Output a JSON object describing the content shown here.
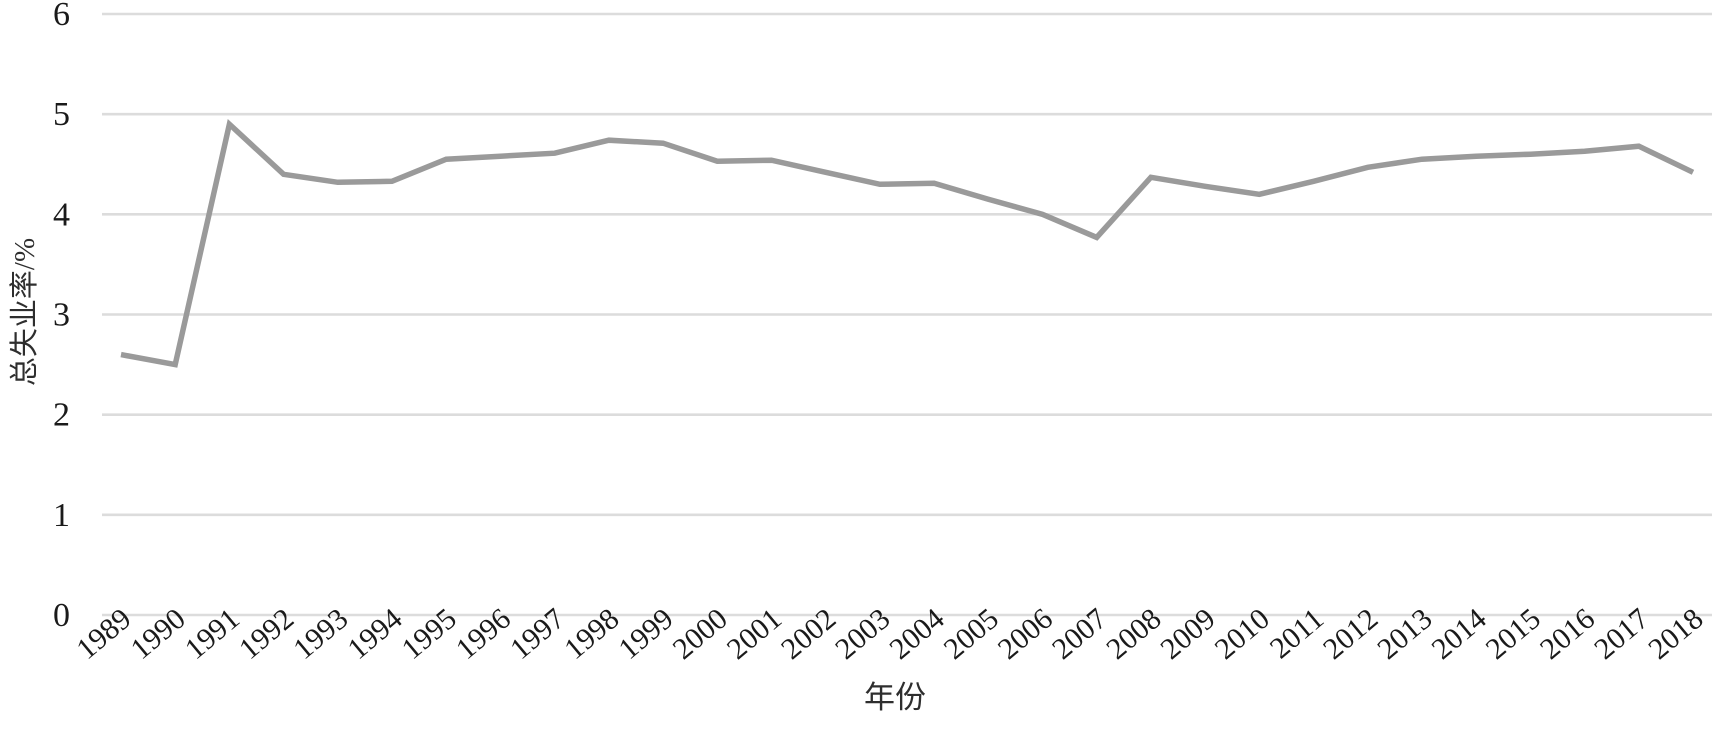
{
  "chart_data": {
    "type": "line",
    "title": "",
    "xlabel": "年份",
    "ylabel": "总失业率/%",
    "categories": [
      "1989",
      "1990",
      "1991",
      "1992",
      "1993",
      "1994",
      "1995",
      "1996",
      "1997",
      "1998",
      "1999",
      "2000",
      "2001",
      "2002",
      "2003",
      "2004",
      "2005",
      "2006",
      "2007",
      "2008",
      "2009",
      "2010",
      "2011",
      "2012",
      "2013",
      "2014",
      "2015",
      "2016",
      "2017",
      "2018"
    ],
    "values": [
      2.6,
      2.5,
      4.9,
      4.4,
      4.32,
      4.33,
      4.55,
      4.58,
      4.61,
      4.74,
      4.71,
      4.53,
      4.54,
      4.42,
      4.3,
      4.31,
      4.15,
      4.0,
      3.77,
      4.37,
      4.28,
      4.2,
      4.33,
      4.47,
      4.55,
      4.58,
      4.6,
      4.63,
      4.68,
      4.42
    ],
    "ylim": [
      0,
      6
    ],
    "yticks": [
      0,
      1,
      2,
      3,
      4,
      5,
      6
    ],
    "grid": "horizontal",
    "legend": "none",
    "line_color": "#9a9a9a",
    "gridline_color": "#dcdcdc",
    "tick_label_color": "#1a1a1a"
  }
}
